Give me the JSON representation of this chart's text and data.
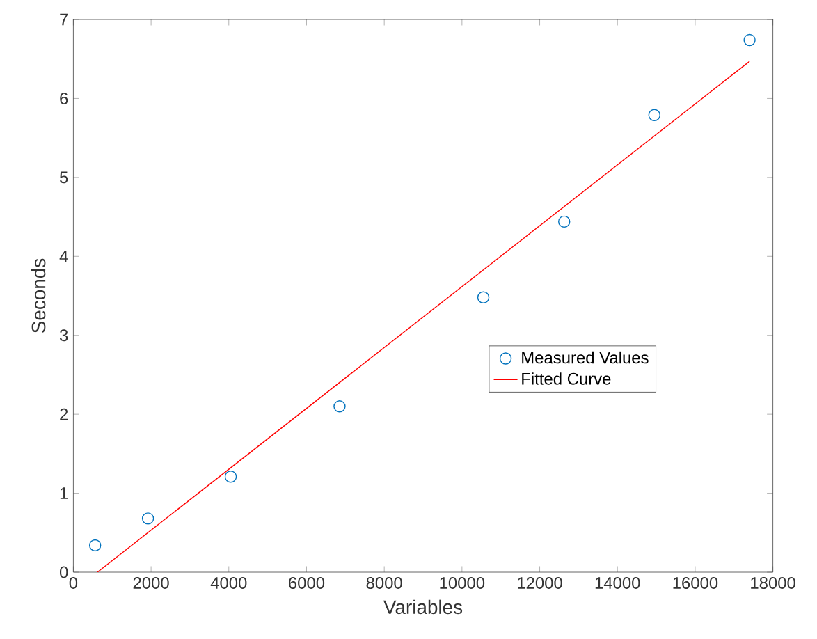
{
  "chart_data": {
    "type": "scatter",
    "xlabel": "Variables",
    "ylabel": "Seconds",
    "xlim": [
      0,
      18000
    ],
    "ylim": [
      0,
      7
    ],
    "xticks": [
      0,
      2000,
      4000,
      6000,
      8000,
      10000,
      12000,
      14000,
      16000,
      18000
    ],
    "yticks": [
      0,
      1,
      2,
      3,
      4,
      5,
      6,
      7
    ],
    "grid": false,
    "legend": "right",
    "series": [
      {
        "name": "Measured Values",
        "color": "#0072bd",
        "marker": "circle",
        "x": [
          560,
          1920,
          4050,
          6850,
          10550,
          12630,
          14950,
          17400
        ],
        "values": [
          0.34,
          0.68,
          1.21,
          2.1,
          3.48,
          4.44,
          5.79,
          6.74
        ]
      },
      {
        "name": "Fitted Curve",
        "type": "line",
        "color": "#ff0000",
        "marker": "none",
        "line_style": "solid",
        "x": [
          620,
          17400
        ],
        "values": [
          0,
          6.47
        ]
      }
    ]
  }
}
